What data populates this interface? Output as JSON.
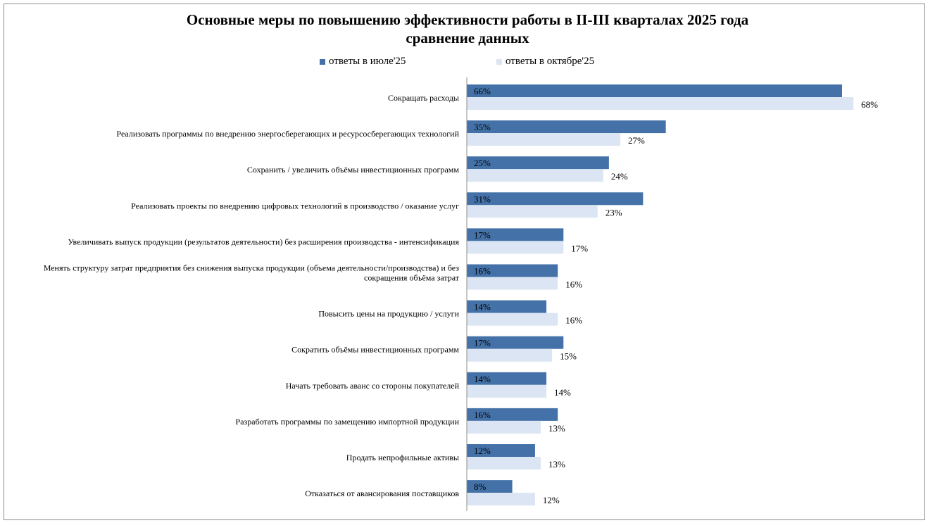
{
  "chart_data": {
    "type": "bar",
    "orientation": "horizontal",
    "title": "Основные меры по повышению эффективности работы в II-III кварталах 2025 года",
    "subtitle": "сравнение данных",
    "categories": [
      "Сокращать расходы",
      "Реализовать программы по внедрению энергосберегающих и ресурсосберегающих технологий",
      "Сохранить / увеличить объёмы инвестиционных программ",
      "Реализовать проекты по внедрению цифровых технологий в производство / оказание услуг",
      "Увеличивать выпуск продукции (результатов деятельности) без расширения производства - интенсификация",
      "Менять структуру затрат предприятия без снижения выпуска продукции (объема деятельности/производства) и без сокращения объёма затрат",
      "Повысить цены на продукцию / услуги",
      "Сократить объёмы инвестиционных программ",
      "Начать требовать аванс со стороны покупателей",
      "Разработать программы по замещению импортной продукции",
      "Продать непрофильные активы",
      "Отказаться от авансирования поставщиков"
    ],
    "category_lines": [
      [
        "Сокращать расходы"
      ],
      [
        "Реализовать программы по внедрению энергосберегающих и ресурсосберегающих технологий"
      ],
      [
        "Сохранить / увеличить объёмы инвестиционных программ"
      ],
      [
        "Реализовать проекты по внедрению цифровых технологий в производство / оказание услуг"
      ],
      [
        "Увеличивать выпуск продукции (результатов деятельности) без расширения производства - интенсификация"
      ],
      [
        "Менять структуру затрат предприятия без снижения выпуска продукции (объема деятельности/производства) и без",
        "сокращения объёма затрат"
      ],
      [
        "Повысить цены на продукцию / услуги"
      ],
      [
        "Сократить объёмы инвестиционных программ"
      ],
      [
        "Начать требовать аванс со стороны покупателей"
      ],
      [
        "Разработать программы по замещению импортной продукции"
      ],
      [
        "Продать непрофильные активы"
      ],
      [
        "Отказаться от авансирования поставщиков"
      ]
    ],
    "series": [
      {
        "name": "ответы в июле'25",
        "color": "#4472a8",
        "values": [
          66,
          35,
          25,
          31,
          17,
          16,
          14,
          17,
          14,
          16,
          12,
          8
        ]
      },
      {
        "name": "ответы в октябре'25",
        "color": "#dbe5f3",
        "values": [
          68,
          27,
          24,
          23,
          17,
          16,
          16,
          15,
          14,
          13,
          13,
          12
        ]
      }
    ],
    "value_suffix": "%",
    "xlim": [
      0,
      80
    ],
    "legend_position": "top",
    "grid": false
  }
}
